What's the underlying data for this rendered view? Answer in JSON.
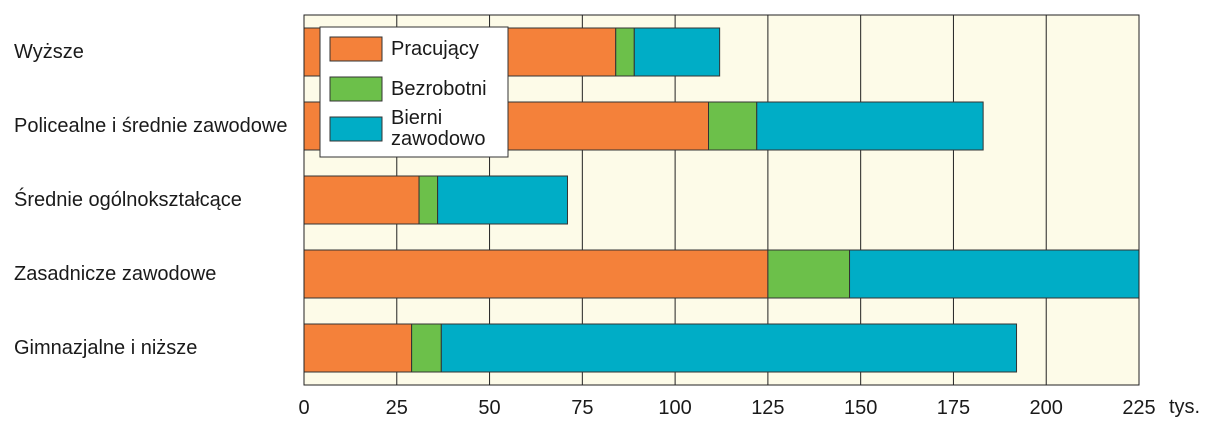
{
  "chart_data": {
    "type": "stacked-barh",
    "categories": [
      "Wyższe",
      "Policealne i średnie zawodowe",
      "Średnie ogólnokształcące",
      "Zasadnicze zawodowe",
      "Gimnazjalne i niższe"
    ],
    "series": [
      {
        "name": "Pracujący",
        "color": "#f4813a",
        "values": [
          84,
          109,
          31,
          125,
          29
        ]
      },
      {
        "name": "Bezrobotni",
        "color": "#6cc04a",
        "values": [
          5,
          13,
          5,
          22,
          8
        ]
      },
      {
        "name": "Bierni zawodowo",
        "color": "#00adc6",
        "values": [
          23,
          61,
          35,
          78,
          155
        ]
      }
    ],
    "xlim": [
      0,
      225
    ],
    "xticks": [
      0,
      25,
      50,
      75,
      100,
      125,
      150,
      175,
      200,
      225
    ],
    "x_unit": "tys.",
    "grid": true,
    "legend": "upper left"
  }
}
